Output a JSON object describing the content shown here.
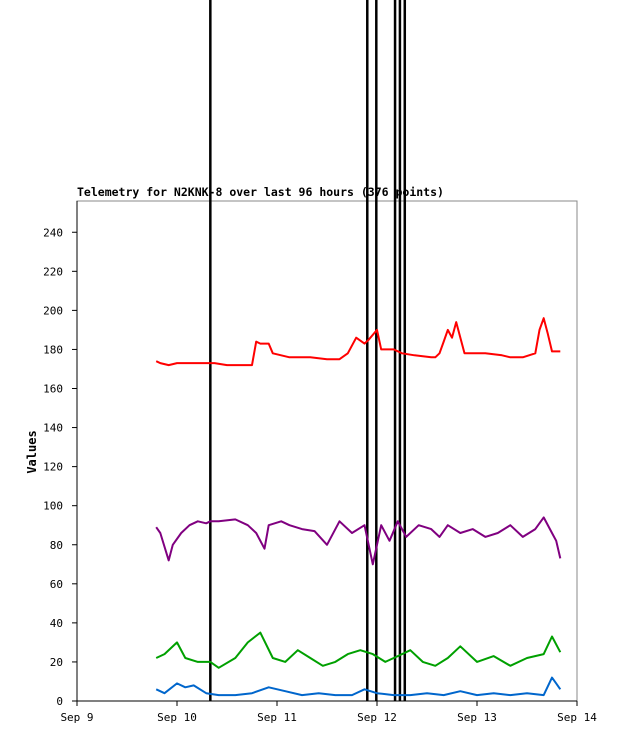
{
  "chart_data": {
    "type": "line",
    "title": "Telemetry for N2KNK-8 over last 96 hours (376 points)",
    "xlabel": "",
    "ylabel": "Values",
    "xlim": [
      "2023-09-09",
      "2023-09-14"
    ],
    "ylim": [
      0,
      256
    ],
    "x_ticks": [
      "Sep 9",
      "Sep 10",
      "Sep 11",
      "Sep 12",
      "Sep 13",
      "Sep 14"
    ],
    "y_ticks": [
      0,
      20,
      40,
      60,
      80,
      100,
      120,
      140,
      160,
      180,
      200,
      220,
      240
    ],
    "grid": false,
    "legend": "none",
    "vertical_spikes": [
      {
        "x": "2023-09-10 08:00",
        "color": "#000000"
      },
      {
        "x": "2023-09-11 21:40",
        "color": "#000000"
      },
      {
        "x": "2023-09-11 23:50",
        "color": "#000000"
      },
      {
        "x": "2023-09-12 04:20",
        "color": "#000000"
      },
      {
        "x": "2023-09-12 05:30",
        "color": "#000000"
      },
      {
        "x": "2023-09-12 06:40",
        "color": "#000000"
      }
    ],
    "series": [
      {
        "color": "#ff0000",
        "x": [
          "2023-09-09 19:00",
          "2023-09-09 20:00",
          "2023-09-09 22:00",
          "2023-09-10 00:00",
          "2023-09-10 04:00",
          "2023-09-10 08:00",
          "2023-09-10 09:00",
          "2023-09-10 12:00",
          "2023-09-10 16:00",
          "2023-09-10 18:00",
          "2023-09-10 19:00",
          "2023-09-10 20:00",
          "2023-09-10 22:00",
          "2023-09-10 23:00",
          "2023-09-11 03:00",
          "2023-09-11 08:00",
          "2023-09-11 12:00",
          "2023-09-11 15:00",
          "2023-09-11 17:00",
          "2023-09-11 19:00",
          "2023-09-11 21:00",
          "2023-09-11 22:00",
          "2023-09-12 00:00",
          "2023-09-12 01:00",
          "2023-09-12 04:00",
          "2023-09-12 06:00",
          "2023-09-12 09:00",
          "2023-09-12 13:00",
          "2023-09-12 14:00",
          "2023-09-12 15:00",
          "2023-09-12 16:00",
          "2023-09-12 17:00",
          "2023-09-12 18:00",
          "2023-09-12 19:00",
          "2023-09-12 21:00",
          "2023-09-13 02:00",
          "2023-09-13 06:00",
          "2023-09-13 08:00",
          "2023-09-13 10:00",
          "2023-09-13 11:00",
          "2023-09-13 14:00",
          "2023-09-13 15:00",
          "2023-09-13 16:00",
          "2023-09-13 17:00",
          "2023-09-13 18:00",
          "2023-09-13 19:00",
          "2023-09-13 20:00"
        ],
        "y": [
          174,
          173,
          172,
          173,
          173,
          173,
          173,
          172,
          172,
          172,
          184,
          183,
          183,
          178,
          176,
          176,
          175,
          175,
          178,
          186,
          183,
          185,
          190,
          180,
          180,
          178,
          177,
          176,
          176,
          178,
          184,
          190,
          186,
          194,
          178,
          178,
          177,
          176,
          176,
          176,
          178,
          190,
          196,
          188,
          179,
          179,
          179
        ]
      },
      {
        "color": "#800080",
        "x": [
          "2023-09-09 19:00",
          "2023-09-09 20:00",
          "2023-09-09 22:00",
          "2023-09-09 23:00",
          "2023-09-10 01:00",
          "2023-09-10 03:00",
          "2023-09-10 05:00",
          "2023-09-10 07:00",
          "2023-09-10 08:00",
          "2023-09-10 10:00",
          "2023-09-10 14:00",
          "2023-09-10 17:00",
          "2023-09-10 19:00",
          "2023-09-10 21:00",
          "2023-09-10 22:00",
          "2023-09-11 01:00",
          "2023-09-11 03:00",
          "2023-09-11 06:00",
          "2023-09-11 09:00",
          "2023-09-11 12:00",
          "2023-09-11 15:00",
          "2023-09-11 18:00",
          "2023-09-11 21:00",
          "2023-09-11 23:00",
          "2023-09-12 01:00",
          "2023-09-12 03:00",
          "2023-09-12 05:00",
          "2023-09-12 07:00",
          "2023-09-12 10:00",
          "2023-09-12 13:00",
          "2023-09-12 15:00",
          "2023-09-12 17:00",
          "2023-09-12 20:00",
          "2023-09-12 23:00",
          "2023-09-13 02:00",
          "2023-09-13 05:00",
          "2023-09-13 08:00",
          "2023-09-13 11:00",
          "2023-09-13 14:00",
          "2023-09-13 16:00",
          "2023-09-13 18:00",
          "2023-09-13 19:00",
          "2023-09-13 20:00"
        ],
        "y": [
          89,
          86,
          72,
          80,
          86,
          90,
          92,
          91,
          92,
          92,
          93,
          90,
          86,
          78,
          90,
          92,
          90,
          88,
          87,
          80,
          92,
          86,
          90,
          70,
          90,
          82,
          92,
          84,
          90,
          88,
          84,
          90,
          86,
          88,
          84,
          86,
          90,
          84,
          88,
          94,
          86,
          82,
          73
        ]
      },
      {
        "color": "#00a000",
        "x": [
          "2023-09-09 19:00",
          "2023-09-09 21:00",
          "2023-09-10 00:00",
          "2023-09-10 02:00",
          "2023-09-10 05:00",
          "2023-09-10 08:00",
          "2023-09-10 10:00",
          "2023-09-10 14:00",
          "2023-09-10 17:00",
          "2023-09-10 20:00",
          "2023-09-10 23:00",
          "2023-09-11 02:00",
          "2023-09-11 05:00",
          "2023-09-11 08:00",
          "2023-09-11 11:00",
          "2023-09-11 14:00",
          "2023-09-11 17:00",
          "2023-09-11 20:00",
          "2023-09-11 23:00",
          "2023-09-12 02:00",
          "2023-09-12 05:00",
          "2023-09-12 08:00",
          "2023-09-12 11:00",
          "2023-09-12 14:00",
          "2023-09-12 17:00",
          "2023-09-12 20:00",
          "2023-09-13 00:00",
          "2023-09-13 04:00",
          "2023-09-13 08:00",
          "2023-09-13 12:00",
          "2023-09-13 16:00",
          "2023-09-13 18:00",
          "2023-09-13 20:00"
        ],
        "y": [
          22,
          24,
          30,
          22,
          20,
          20,
          17,
          22,
          30,
          35,
          22,
          20,
          26,
          22,
          18,
          20,
          24,
          26,
          24,
          20,
          23,
          26,
          20,
          18,
          22,
          28,
          20,
          23,
          18,
          22,
          24,
          33,
          25
        ]
      },
      {
        "color": "#0066cc",
        "x": [
          "2023-09-09 19:00",
          "2023-09-09 21:00",
          "2023-09-10 00:00",
          "2023-09-10 02:00",
          "2023-09-10 04:00",
          "2023-09-10 07:00",
          "2023-09-10 10:00",
          "2023-09-10 14:00",
          "2023-09-10 18:00",
          "2023-09-10 22:00",
          "2023-09-11 02:00",
          "2023-09-11 06:00",
          "2023-09-11 10:00",
          "2023-09-11 14:00",
          "2023-09-11 18:00",
          "2023-09-11 21:00",
          "2023-09-12 00:00",
          "2023-09-12 04:00",
          "2023-09-12 08:00",
          "2023-09-12 12:00",
          "2023-09-12 16:00",
          "2023-09-12 20:00",
          "2023-09-13 00:00",
          "2023-09-13 04:00",
          "2023-09-13 08:00",
          "2023-09-13 12:00",
          "2023-09-13 16:00",
          "2023-09-13 18:00",
          "2023-09-13 19:00",
          "2023-09-13 20:00"
        ],
        "y": [
          6,
          4,
          9,
          7,
          8,
          4,
          3,
          3,
          4,
          7,
          5,
          3,
          4,
          3,
          3,
          6,
          4,
          3,
          3,
          4,
          3,
          5,
          3,
          4,
          3,
          4,
          3,
          12,
          9,
          6
        ]
      }
    ]
  }
}
